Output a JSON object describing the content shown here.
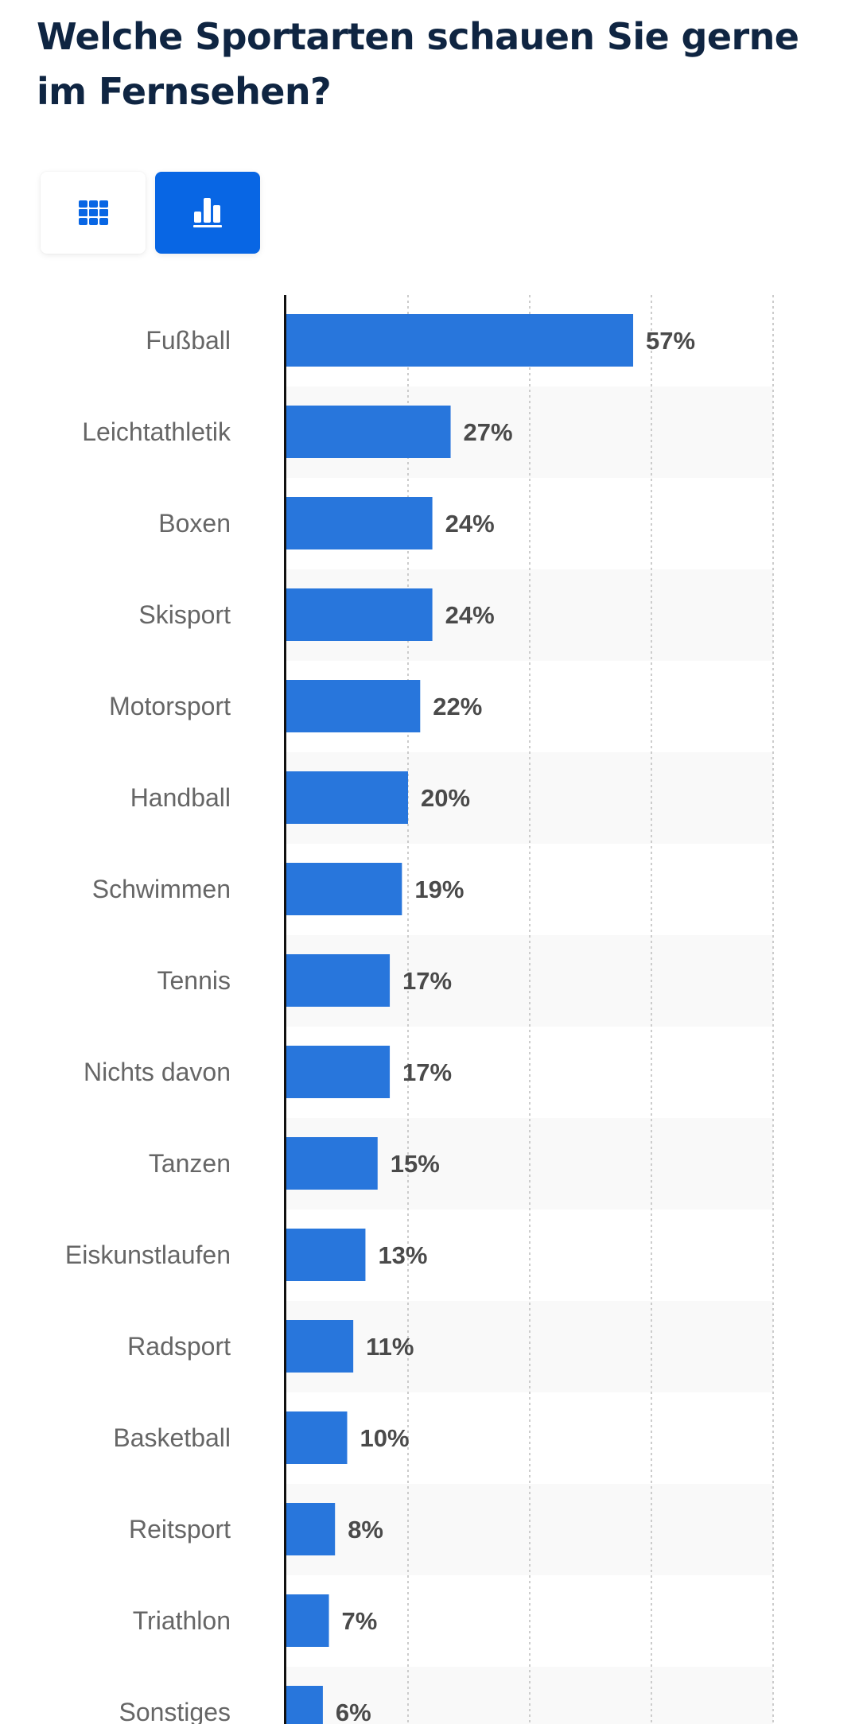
{
  "page": {
    "title": "Welche Sportarten schauen Sie gerne im Fernsehen?"
  },
  "view_toggle": {
    "options": [
      {
        "name": "table-view",
        "icon": "grid-icon",
        "active": false
      },
      {
        "name": "chart-view",
        "icon": "bar-chart-icon",
        "active": true
      }
    ],
    "active_color": "#0866e4"
  },
  "colors": {
    "bar": "#2876dc",
    "title": "#0f2542",
    "category_label": "#666666",
    "value_label": "#4a4a4a",
    "band": "#f9f9f9",
    "gridline": "#cccccc",
    "axis": "#111111"
  },
  "chart_data": {
    "type": "bar",
    "orientation": "horizontal",
    "title": "Welche Sportarten schauen Sie gerne im Fernsehen?",
    "xlabel": "",
    "ylabel": "",
    "unit": "%",
    "xlim": [
      0,
      80
    ],
    "gridlines": [
      20,
      40,
      60,
      80
    ],
    "grid": true,
    "legend": "none",
    "categories": [
      "Fußball",
      "Leichtathletik",
      "Boxen",
      "Skisport",
      "Motorsport",
      "Handball",
      "Schwimmen",
      "Tennis",
      "Nichts davon",
      "Tanzen",
      "Eiskunstlaufen",
      "Radsport",
      "Basketball",
      "Reitsport",
      "Triathlon",
      "Sonstiges"
    ],
    "values": [
      57,
      27,
      24,
      24,
      22,
      20,
      19,
      17,
      17,
      15,
      13,
      11,
      10,
      8,
      7,
      6
    ],
    "value_labels": [
      "57%",
      "27%",
      "24%",
      "24%",
      "22%",
      "20%",
      "19%",
      "17%",
      "17%",
      "15%",
      "13%",
      "11%",
      "10%",
      "8%",
      "7%",
      "6%"
    ]
  }
}
